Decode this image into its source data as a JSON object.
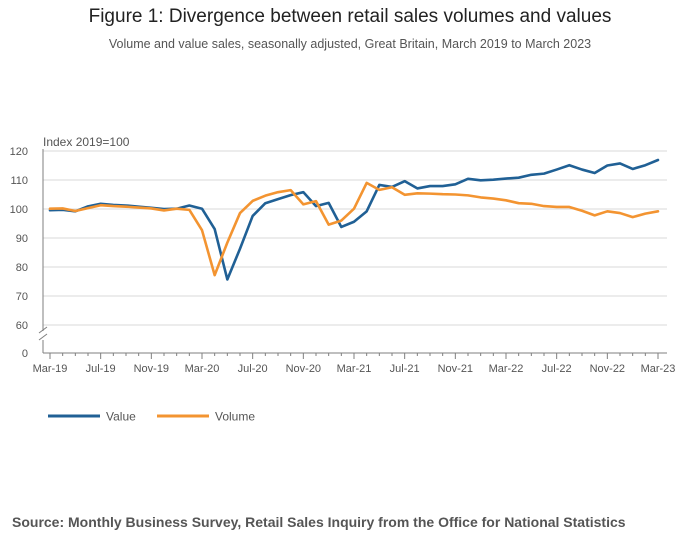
{
  "page": {
    "title": "Figure 1: Divergence between retail sales volumes and values",
    "subtitle": "Volume and value sales, seasonally adjusted, Great Britain, March 2019 to March 2023",
    "source": "Source: Monthly Business Survey, Retail Sales Inquiry from the Office for National Statistics"
  },
  "colors": {
    "value": "#206095",
    "volume": "#f39431",
    "grid": "#d9d9d9",
    "axis": "#7f7f7f",
    "tick_text": "#555555"
  },
  "chart_data": {
    "type": "line",
    "ylabel": "Index 2019=100",
    "ylim": [
      0,
      120
    ],
    "yticks": [
      0,
      60,
      70,
      80,
      90,
      100,
      110,
      120
    ],
    "axis_break": "between 0 and 60",
    "grid": true,
    "legend_position": "bottom-left",
    "x": [
      "Mar-19",
      "Apr-19",
      "May-19",
      "Jun-19",
      "Jul-19",
      "Aug-19",
      "Sep-19",
      "Oct-19",
      "Nov-19",
      "Dec-19",
      "Jan-20",
      "Feb-20",
      "Mar-20",
      "Apr-20",
      "May-20",
      "Jun-20",
      "Jul-20",
      "Aug-20",
      "Sep-20",
      "Oct-20",
      "Nov-20",
      "Dec-20",
      "Jan-21",
      "Feb-21",
      "Mar-21",
      "Apr-21",
      "May-21",
      "Jun-21",
      "Jul-21",
      "Aug-21",
      "Sep-21",
      "Oct-21",
      "Nov-21",
      "Dec-21",
      "Jan-22",
      "Feb-22",
      "Mar-22",
      "Apr-22",
      "May-22",
      "Jun-22",
      "Jul-22",
      "Aug-22",
      "Sep-22",
      "Oct-22",
      "Nov-22",
      "Dec-22",
      "Jan-23",
      "Feb-23",
      "Mar-23"
    ],
    "xtick_labels": [
      "Mar-19",
      "Jul-19",
      "Nov-19",
      "Mar-20",
      "Jul-20",
      "Nov-20",
      "Mar-21",
      "Jul-21",
      "Nov-21",
      "Mar-22",
      "Jul-22",
      "Nov-22",
      "Mar-23"
    ],
    "series": [
      {
        "name": "Value",
        "values": [
          99.6,
          99.7,
          99.2,
          100.9,
          101.8,
          101.4,
          101.2,
          100.8,
          100.4,
          100.0,
          100.1,
          101.2,
          100.1,
          93.1,
          75.7,
          86.3,
          97.6,
          102.0,
          103.4,
          104.8,
          105.8,
          101.0,
          102.1,
          93.8,
          95.6,
          99.2,
          108.3,
          107.6,
          109.6,
          107.1,
          107.9,
          107.9,
          108.5,
          110.4,
          109.9,
          110.1,
          110.5,
          110.8,
          111.8,
          112.2,
          113.6,
          115.1,
          113.6,
          112.4,
          115.0,
          115.7,
          113.8,
          115.1,
          116.9
        ]
      },
      {
        "name": "Volume",
        "values": [
          100.1,
          100.2,
          99.3,
          100.3,
          101.3,
          101.0,
          100.8,
          100.5,
          100.2,
          99.5,
          100.1,
          99.7,
          92.7,
          77.2,
          88.4,
          98.6,
          102.8,
          104.6,
          105.8,
          106.5,
          101.6,
          102.7,
          94.6,
          96.0,
          100.1,
          109.0,
          106.6,
          107.5,
          104.9,
          105.4,
          105.3,
          105.1,
          105.0,
          104.7,
          104.0,
          103.6,
          103.0,
          102.0,
          101.8,
          101.0,
          100.7,
          100.7,
          99.4,
          97.8,
          99.2,
          98.6,
          97.2,
          98.4,
          99.2
        ]
      }
    ]
  }
}
